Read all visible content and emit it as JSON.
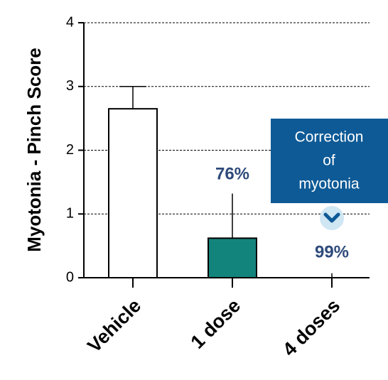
{
  "chart_data": {
    "type": "bar",
    "ylabel": "Myotonia - Pinch Score",
    "categories": [
      "Vehicle",
      "1 dose",
      "4 doses"
    ],
    "values": [
      2.65,
      0.62,
      0.0
    ],
    "errors": [
      0.35,
      0.7,
      0.07
    ],
    "colors": [
      "#ffffff",
      "#13847c",
      "#ffffff"
    ],
    "ylim": [
      0,
      4
    ],
    "yticks": [
      0,
      1,
      2,
      3,
      4
    ],
    "grid": true,
    "annotations": [
      "76%",
      "99%"
    ],
    "callout": [
      "Correction",
      "of",
      "myotonia"
    ]
  }
}
